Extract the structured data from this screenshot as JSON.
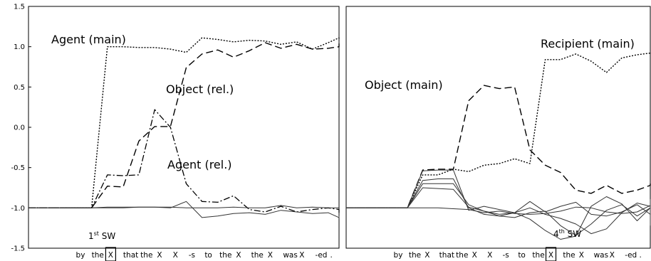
{
  "chart_data": [
    {
      "type": "line",
      "ylim": [
        -1.5,
        1.5
      ],
      "yticks": [
        "1.5",
        "1.0",
        "0.5",
        "0.0",
        "-0.5",
        "-1.0",
        "-1.5"
      ],
      "xticks": [
        "by",
        "the",
        "X",
        "that",
        "the",
        "X",
        "X",
        "-s",
        "to",
        "the",
        "X",
        "the",
        "X",
        "was",
        "X",
        "-ed",
        "."
      ],
      "boxed_tick": "X",
      "series": [
        {
          "name": "Agent (main)",
          "style": "dotted",
          "values": [
            -1.0,
            -1.0,
            -1.0,
            -1.0,
            -1.0,
            1.0,
            1.0,
            0.99,
            0.99,
            0.97,
            0.93,
            1.11,
            1.09,
            1.06,
            1.08,
            1.07,
            1.03,
            1.06,
            0.97,
            1.05,
            1.11,
            1.08
          ]
        },
        {
          "name": "Object (rel.)",
          "style": "dashed",
          "values": [
            -1.0,
            -1.0,
            -1.0,
            -1.0,
            -1.0,
            -0.73,
            -0.74,
            -0.17,
            0.01,
            0.01,
            0.74,
            0.91,
            0.96,
            0.87,
            0.95,
            1.05,
            0.98,
            1.03,
            0.97,
            0.98,
            1.0,
            1.04
          ]
        },
        {
          "name": "Agent (rel.)",
          "style": "dashdot",
          "values": [
            -1.0,
            -1.0,
            -1.0,
            -1.0,
            -1.0,
            -0.59,
            -0.6,
            -0.59,
            0.22,
            0.0,
            -0.7,
            -0.92,
            -0.93,
            -0.85,
            -1.02,
            -1.05,
            -0.98,
            -1.05,
            -1.02,
            -1.0,
            -1.02,
            -1.06
          ]
        },
        {
          "style": "solid",
          "values": [
            -1.0,
            -1.0,
            -1.0,
            -1.0,
            -1.0,
            -0.99,
            -0.99,
            -0.99,
            -0.99,
            -1.0,
            -0.92,
            -1.12,
            -1.1,
            -1.07,
            -1.06,
            -1.08,
            -1.03,
            -1.05,
            -1.07,
            -1.06,
            -1.12,
            -1.1
          ]
        },
        {
          "style": "solid",
          "values": [
            -1.0,
            -1.0,
            -1.0,
            -1.0,
            -1.0,
            -1.0,
            -1.0,
            -0.99,
            -0.99,
            -0.99,
            -1.0,
            -1.0,
            -1.0,
            -0.99,
            -1.0,
            -1.0,
            -0.97,
            -1.0,
            -0.99,
            -1.0,
            -1.0,
            -1.0
          ]
        }
      ],
      "annotations": [
        "Agent (main)",
        "Object (rel.)",
        "Agent (rel.)",
        "1st SW"
      ]
    },
    {
      "type": "line",
      "ylim": [
        -1.5,
        1.5
      ],
      "xticks": [
        "by",
        "the",
        "X",
        "that",
        "the",
        "X",
        "X",
        "-s",
        "to",
        "the",
        "X",
        "the",
        "X",
        "was",
        "X",
        "-ed",
        "."
      ],
      "boxed_tick": "X",
      "series": [
        {
          "name": "Recipient (main)",
          "style": "dotted",
          "values": [
            -1.0,
            -1.0,
            -1.0,
            -1.0,
            -1.0,
            -0.59,
            -0.59,
            -0.52,
            -0.55,
            -0.47,
            -0.45,
            -0.39,
            -0.45,
            0.84,
            0.84,
            0.91,
            0.82,
            0.68,
            0.86,
            0.9,
            0.92,
            0.92
          ]
        },
        {
          "name": "Object (main)",
          "style": "dashed",
          "values": [
            -1.0,
            -1.0,
            -1.0,
            -1.0,
            -1.0,
            -0.53,
            -0.52,
            -0.52,
            0.33,
            0.52,
            0.48,
            0.5,
            -0.28,
            -0.47,
            -0.56,
            -0.78,
            -0.82,
            -0.72,
            -0.82,
            -0.78,
            -0.72,
            -0.7
          ]
        },
        {
          "style": "solid",
          "values": [
            -1.0,
            -1.0,
            -1.0,
            -1.0,
            -1.0,
            -0.54,
            -0.53,
            -0.53,
            -1.03,
            -0.98,
            -1.02,
            -1.06,
            -1.14,
            -1.28,
            -1.39,
            -1.35,
            -0.98,
            -0.86,
            -0.95,
            -1.16,
            -1.0,
            -0.89
          ]
        },
        {
          "style": "solid",
          "values": [
            -1.0,
            -1.0,
            -1.0,
            -1.0,
            -1.0,
            -0.66,
            -0.64,
            -0.64,
            -1.0,
            -1.08,
            -1.1,
            -1.12,
            -1.06,
            -1.04,
            -1.22,
            -1.34,
            -1.2,
            -1.03,
            -0.96,
            -1.1,
            -1.0,
            -1.1
          ]
        },
        {
          "style": "solid",
          "values": [
            -1.0,
            -1.0,
            -1.0,
            -1.0,
            -1.0,
            -0.7,
            -0.7,
            -0.7,
            -0.96,
            -1.04,
            -1.08,
            -1.06,
            -0.92,
            -1.05,
            -0.98,
            -0.93,
            -1.08,
            -1.1,
            -1.05,
            -0.96,
            -1.08,
            -1.22
          ]
        },
        {
          "style": "solid",
          "values": [
            -1.0,
            -1.0,
            -1.0,
            -1.0,
            -1.0,
            -0.75,
            -0.76,
            -0.77,
            -0.99,
            -1.04,
            -1.1,
            -1.06,
            -1.0,
            -1.08,
            -1.13,
            -1.2,
            -1.32,
            -1.26,
            -1.06,
            -0.94,
            -0.98,
            -0.93
          ]
        },
        {
          "style": "solid",
          "values": [
            -1.0,
            -1.0,
            -1.0,
            -1.0,
            -1.0,
            -1.0,
            -1.0,
            -1.01,
            -1.02,
            -1.06,
            -1.04,
            -1.07,
            -1.08,
            -1.07,
            -1.04,
            -0.99,
            -1.0,
            -1.05,
            -1.07,
            -1.05,
            -0.97,
            -1.0
          ]
        }
      ],
      "annotations": [
        "Recipient (main)",
        "Object (main)",
        "4th SW"
      ]
    }
  ],
  "labels": {
    "agent_main": "Agent (main)",
    "object_rel": "Object (rel.)",
    "agent_rel": "Agent (rel.)",
    "recipient_main": "Recipient (main)",
    "object_main": "Object (main)",
    "sw1_num": "1",
    "sw1_sup": "st",
    "sw1_rest": " SW",
    "sw4_num": "4",
    "sw4_sup": "th",
    "sw4_rest": " SW"
  }
}
